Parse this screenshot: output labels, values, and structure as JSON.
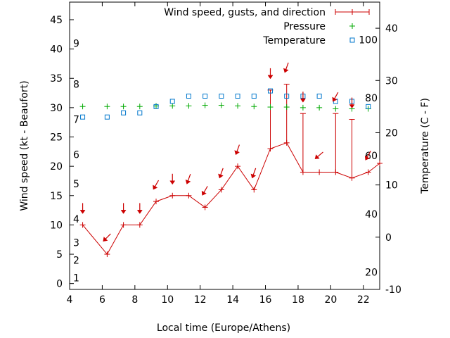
{
  "chart_data": {
    "type": "line",
    "xlabel": "Local time (Europe/Athens)",
    "ylabel_left": "Wind speed (kt - Beaufort)",
    "ylabel_right": "Temperature (C - F)",
    "xlim": [
      4,
      23
    ],
    "ylim_left": [
      -1,
      48
    ],
    "ylim_right": [
      -10,
      45
    ],
    "x_ticks": [
      4,
      6,
      8,
      10,
      12,
      14,
      16,
      18,
      20,
      22
    ],
    "y_left_ticks": [
      0,
      5,
      10,
      15,
      20,
      25,
      30,
      35,
      40,
      45
    ],
    "y_right_ticks": [
      -10,
      0,
      10,
      20,
      30,
      40
    ],
    "beaufort_labels": [
      {
        "label": "1",
        "y": 1
      },
      {
        "label": "2",
        "y": 4
      },
      {
        "label": "3",
        "y": 7
      },
      {
        "label": "4",
        "y": 11
      },
      {
        "label": "5",
        "y": 17
      },
      {
        "label": "6",
        "y": 22
      },
      {
        "label": "7",
        "y": 28
      },
      {
        "label": "8",
        "y": 34
      },
      {
        "label": "9",
        "y": 41
      }
    ],
    "fahrenheit_labels": [
      {
        "label": "20",
        "temp": -6.7
      },
      {
        "label": "40",
        "temp": 4.4
      },
      {
        "label": "60",
        "temp": 15.6
      },
      {
        "label": "80",
        "temp": 26.7
      },
      {
        "label": "100",
        "temp": 37.8
      }
    ],
    "legend": {
      "placement": "top-right",
      "wind": "Wind speed, gusts, and direction",
      "pressure": "Pressure",
      "temperature": "Temperature"
    },
    "series": [
      {
        "name": "Wind speed, gusts, and direction",
        "x": [
          4.8,
          6.3,
          7.3,
          8.3,
          9.3,
          10.3,
          11.3,
          12.3,
          13.3,
          14.3,
          15.3,
          16.3,
          17.3,
          18.3,
          19.3,
          20.3,
          21.3,
          22.3,
          23
        ],
        "speed": [
          10,
          5,
          10,
          10,
          14,
          15,
          15,
          13,
          16,
          20,
          16,
          23,
          24,
          19,
          19,
          19,
          18,
          19,
          20.5
        ],
        "gust": [
          null,
          null,
          null,
          null,
          null,
          null,
          null,
          null,
          null,
          null,
          null,
          33,
          34,
          29,
          null,
          29,
          28,
          null,
          null
        ],
        "direction_deg": [
          0,
          315,
          0,
          0,
          330,
          0,
          340,
          330,
          340,
          340,
          340,
          0,
          340,
          0,
          310,
          330,
          0,
          330,
          null
        ]
      },
      {
        "name": "Pressure",
        "x": [
          4.8,
          6.3,
          7.3,
          8.3,
          9.3,
          10.3,
          11.3,
          12.3,
          13.3,
          14.3,
          15.3,
          16.3,
          17.3,
          18.3,
          19.3,
          20.3,
          21.3,
          22.3
        ],
        "values": [
          30.2,
          30.2,
          30.2,
          30.2,
          30.3,
          30.3,
          30.3,
          30.4,
          30.4,
          30.3,
          30.2,
          30.1,
          30.1,
          30,
          30,
          29.8,
          29.8,
          29.8
        ]
      },
      {
        "name": "Temperature",
        "x": [
          4.8,
          6.3,
          7.3,
          8.3,
          9.3,
          10.3,
          11.3,
          12.3,
          13.3,
          14.3,
          15.3,
          16.3,
          17.3,
          18.3,
          19.3,
          20.3,
          21.3,
          22.3
        ],
        "values": [
          23,
          23,
          23.8,
          23.8,
          25,
          26,
          27,
          27,
          27,
          27,
          27,
          28,
          27,
          27,
          27,
          26,
          26,
          25
        ]
      }
    ],
    "colors": {
      "wind": "#cc0000",
      "pressure": "#00aa00",
      "temperature": "#0077cc"
    }
  }
}
